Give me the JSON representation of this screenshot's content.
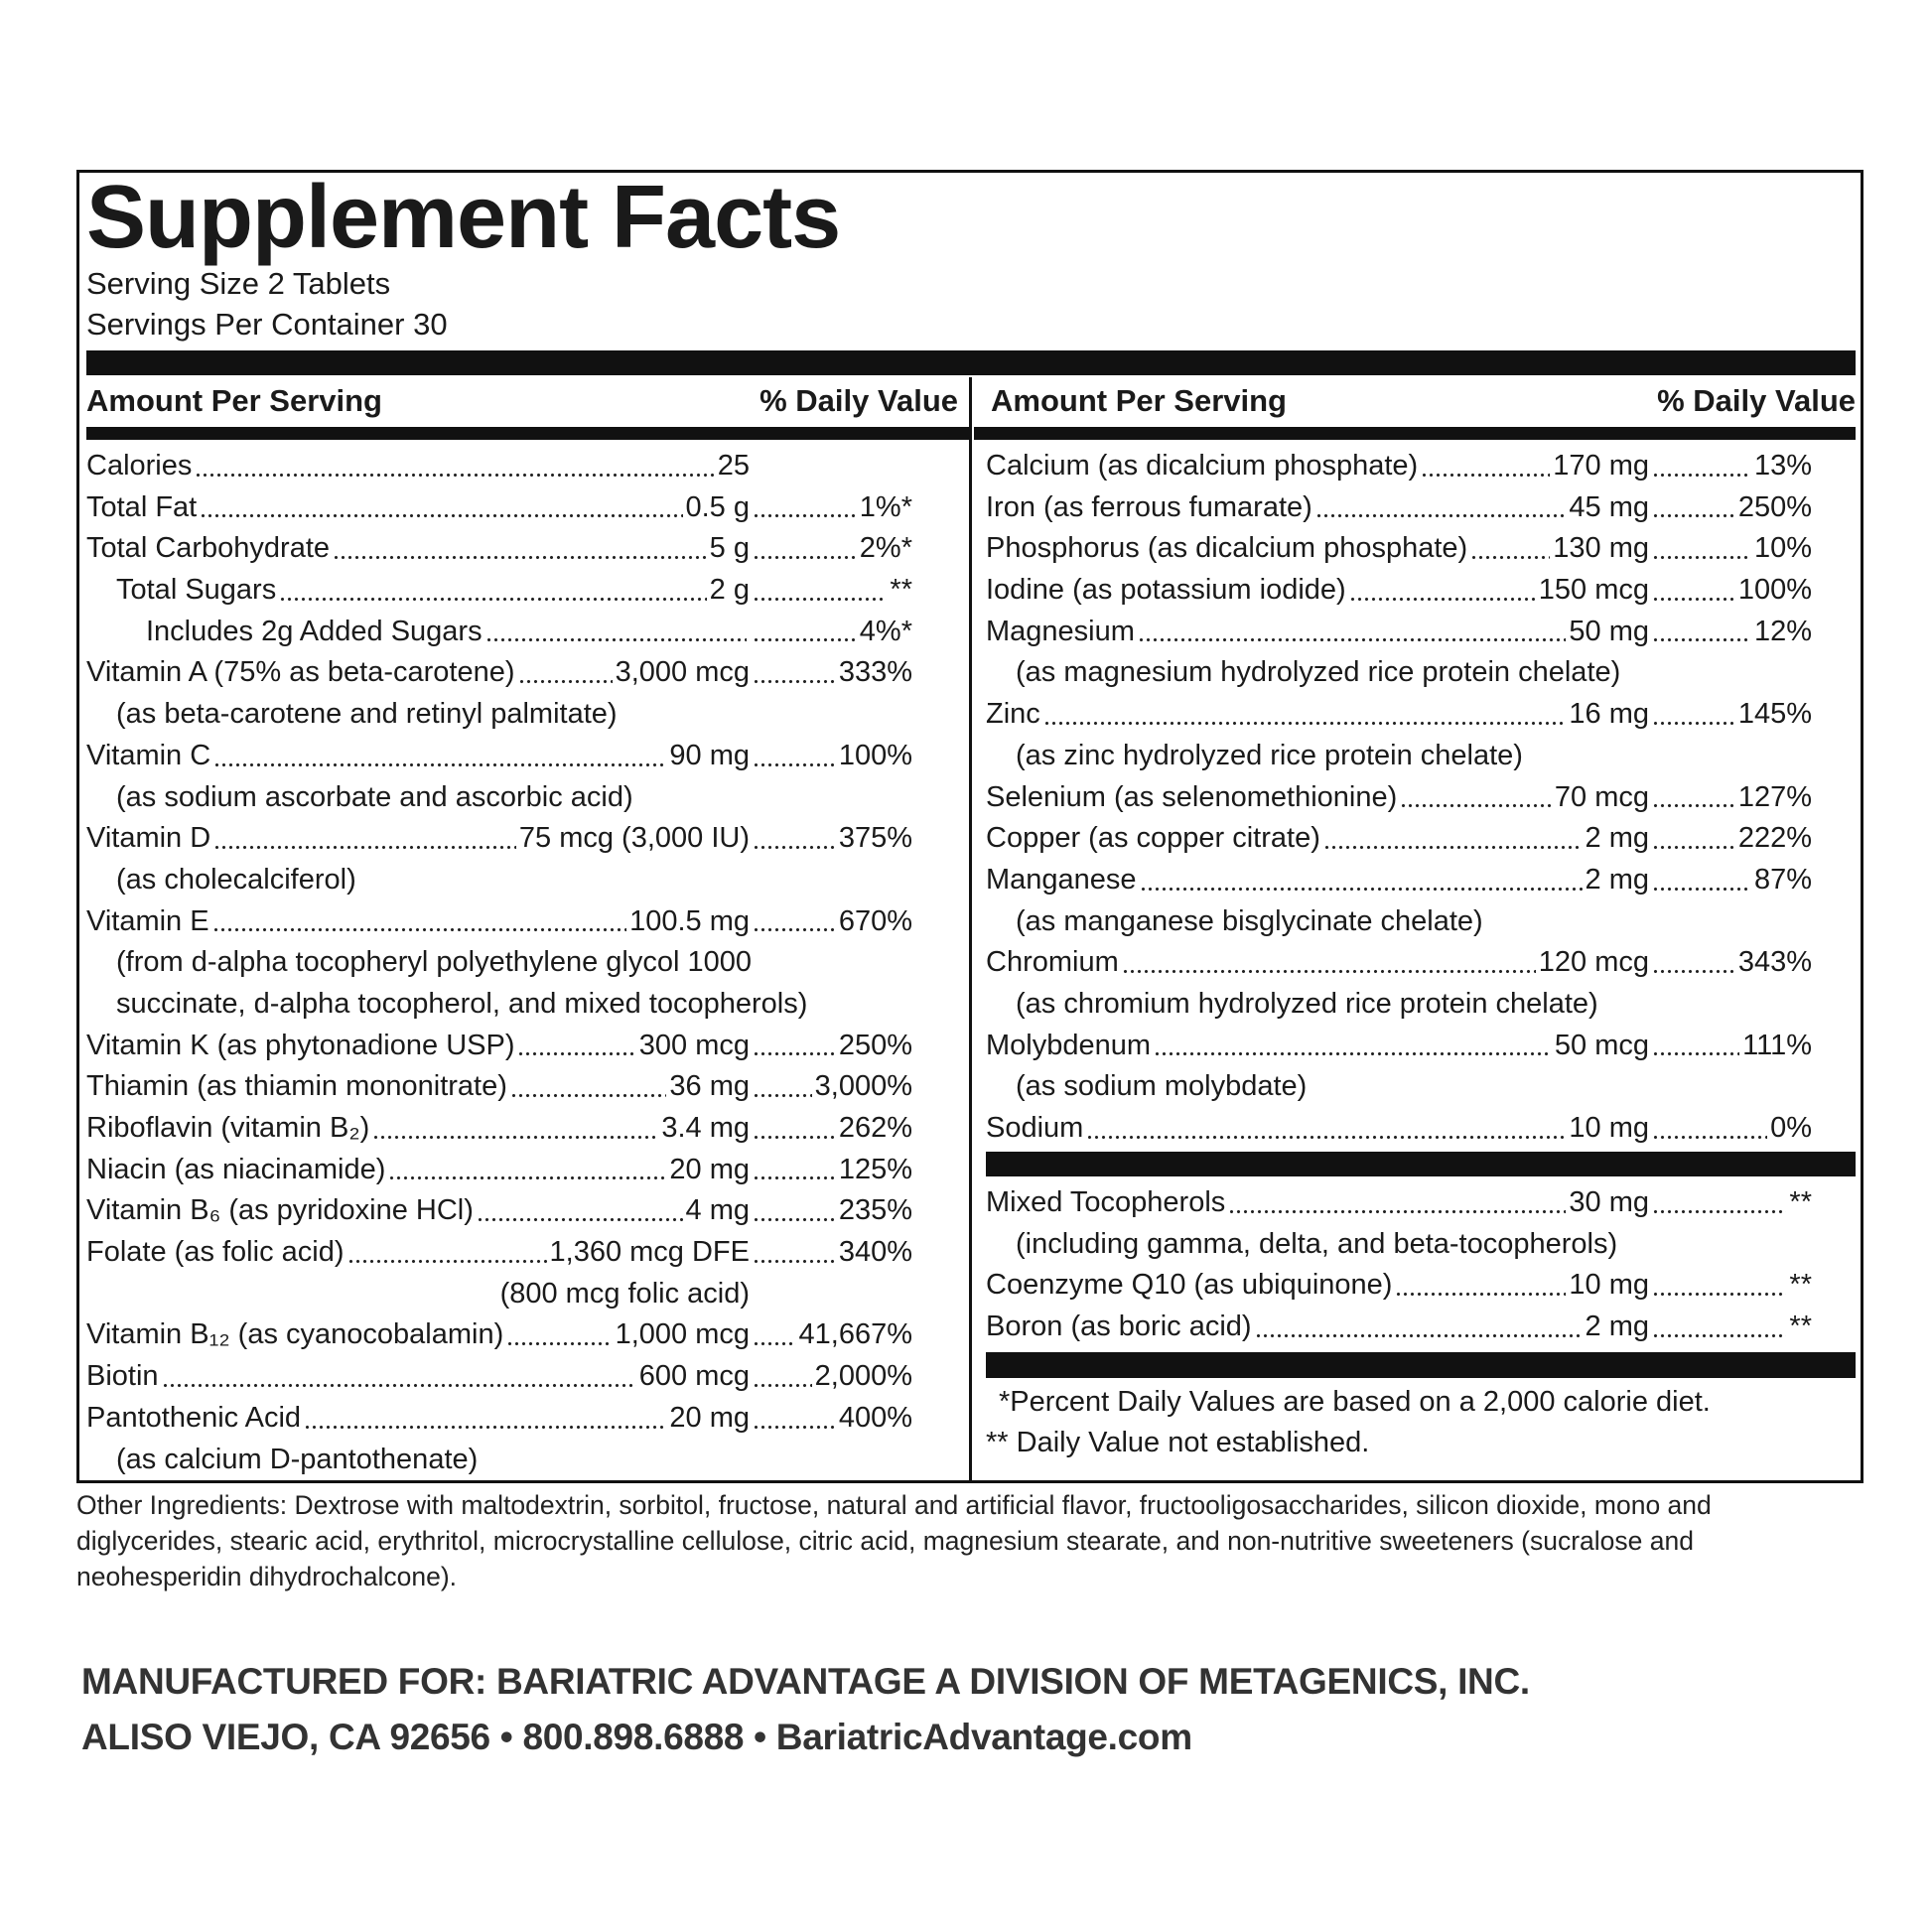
{
  "title": "Supplement Facts",
  "serving_size": "Serving Size 2 Tablets",
  "servings_per_container": "Servings Per Container 30",
  "left": {
    "header": {
      "amount": "Amount Per Serving",
      "dv": "% Daily Value"
    },
    "rows": [
      {
        "name": "Calories",
        "amount": "25"
      },
      {
        "name": "Total Fat",
        "amount": "0.5 g",
        "dv": "1%*"
      },
      {
        "name": "Total Carbohydrate",
        "amount": "5 g",
        "dv": "2%*"
      },
      {
        "name": "Total Sugars",
        "amount": "2 g",
        "dv": "**"
      },
      {
        "name": "Includes 2g Added Sugars",
        "dv": "4%*"
      },
      {
        "name": "Vitamin A (75% as beta-carotene)",
        "amount": "3,000 mcg",
        "dv": "333%",
        "notes": [
          "(as beta-carotene and retinyl palmitate)"
        ]
      },
      {
        "name": "Vitamin C",
        "amount": "90 mg",
        "dv": "100%",
        "notes": [
          "(as sodium ascorbate and ascorbic acid)"
        ]
      },
      {
        "name": "Vitamin D",
        "amount": "75 mcg (3,000 IU)",
        "dv": "375%",
        "notes": [
          "(as cholecalciferol)"
        ]
      },
      {
        "name": "Vitamin E",
        "amount": "100.5 mg",
        "dv": "670%",
        "notes": [
          "(from d-alpha tocopheryl polyethylene glycol 1000",
          "succinate, d-alpha tocopherol, and mixed tocopherols)"
        ]
      },
      {
        "name": "Vitamin K (as phytonadione USP)",
        "amount": "300 mcg",
        "dv": "250%"
      },
      {
        "name": "Thiamin (as thiamin mononitrate)",
        "amount": "36 mg",
        "dv": "3,000%"
      },
      {
        "name": "Riboflavin (vitamin B₂)",
        "amount": "3.4 mg",
        "dv": "262%"
      },
      {
        "name": "Niacin (as niacinamide)",
        "amount": "20 mg",
        "dv": "125%"
      },
      {
        "name": "Vitamin B₆ (as pyridoxine HCl)",
        "amount": "4 mg",
        "dv": "235%"
      },
      {
        "name": "Folate (as folic acid)",
        "amount": "1,360 mcg DFE",
        "dv": "340%",
        "notes": [
          "(800 mcg folic acid)"
        ]
      },
      {
        "name": "Vitamin B₁₂ (as cyanocobalamin)",
        "amount": "1,000 mcg",
        "dv": "41,667%"
      },
      {
        "name": "Biotin",
        "amount": "600 mcg",
        "dv": "2,000%"
      },
      {
        "name": "Pantothenic Acid",
        "amount": "20 mg",
        "dv": "400%",
        "notes": [
          "(as calcium D-pantothenate)"
        ]
      }
    ]
  },
  "right": {
    "header": {
      "amount": "Amount Per Serving",
      "dv": "% Daily Value"
    },
    "sections": [
      [
        {
          "name": "Calcium (as dicalcium phosphate)",
          "amount": "170 mg",
          "dv": "13%"
        },
        {
          "name": "Iron (as ferrous fumarate)",
          "amount": "45 mg",
          "dv": "250%"
        },
        {
          "name": "Phosphorus (as dicalcium phosphate)",
          "amount": "130 mg",
          "dv": "10%"
        },
        {
          "name": "Iodine (as potassium iodide)",
          "amount": "150 mcg",
          "dv": "100%"
        },
        {
          "name": "Magnesium",
          "amount": "50 mg",
          "dv": "12%",
          "notes": [
            "(as magnesium hydrolyzed rice protein chelate)"
          ]
        },
        {
          "name": "Zinc",
          "amount": "16 mg",
          "dv": "145%",
          "notes": [
            "(as zinc hydrolyzed rice protein chelate)"
          ]
        },
        {
          "name": "Selenium (as selenomethionine)",
          "amount": "70 mcg",
          "dv": "127%"
        },
        {
          "name": "Copper (as copper citrate)",
          "amount": "2 mg",
          "dv": "222%"
        },
        {
          "name": "Manganese",
          "amount": "2 mg",
          "dv": "87%",
          "notes": [
            "(as manganese bisglycinate chelate)"
          ]
        },
        {
          "name": "Chromium",
          "amount": "120 mcg",
          "dv": "343%",
          "notes": [
            "(as chromium hydrolyzed rice protein chelate)"
          ]
        },
        {
          "name": "Molybdenum",
          "amount": "50 mcg",
          "dv": "111%",
          "notes": [
            "(as sodium molybdate)"
          ]
        },
        {
          "name": "Sodium",
          "amount": "10 mg",
          "dv": "0%"
        }
      ],
      [
        {
          "name": "Mixed Tocopherols",
          "amount": "30 mg",
          "dv": "**",
          "notes": [
            "(including gamma, delta, and beta-tocopherols)"
          ]
        },
        {
          "name": "Coenzyme Q10 (as ubiquinone)",
          "amount": "10 mg",
          "dv": "**"
        },
        {
          "name": "Boron (as boric acid)",
          "amount": "2 mg",
          "dv": "**"
        }
      ]
    ],
    "footnotes": [
      "*Percent Daily Values are based on a 2,000 calorie diet.",
      "** Daily Value not established."
    ]
  },
  "other_ingredients": "Other Ingredients: Dextrose with maltodextrin, sorbitol, fructose, natural and artificial flavor, fructooligosaccharides, silicon dioxide, mono and diglycerides, stearic acid, erythritol, microcrystalline cellulose, citric acid, magnesium stearate, and non-nutritive sweeteners (sucralose and neohesperidin dihydrochalcone).",
  "manufacturer": [
    "MANUFACTURED FOR: BARIATRIC ADVANTAGE A DIVISION OF METAGENICS, INC.",
    "ALISO VIEJO, CA 92656 • 800.898.6888 • BariatricAdvantage.com"
  ]
}
